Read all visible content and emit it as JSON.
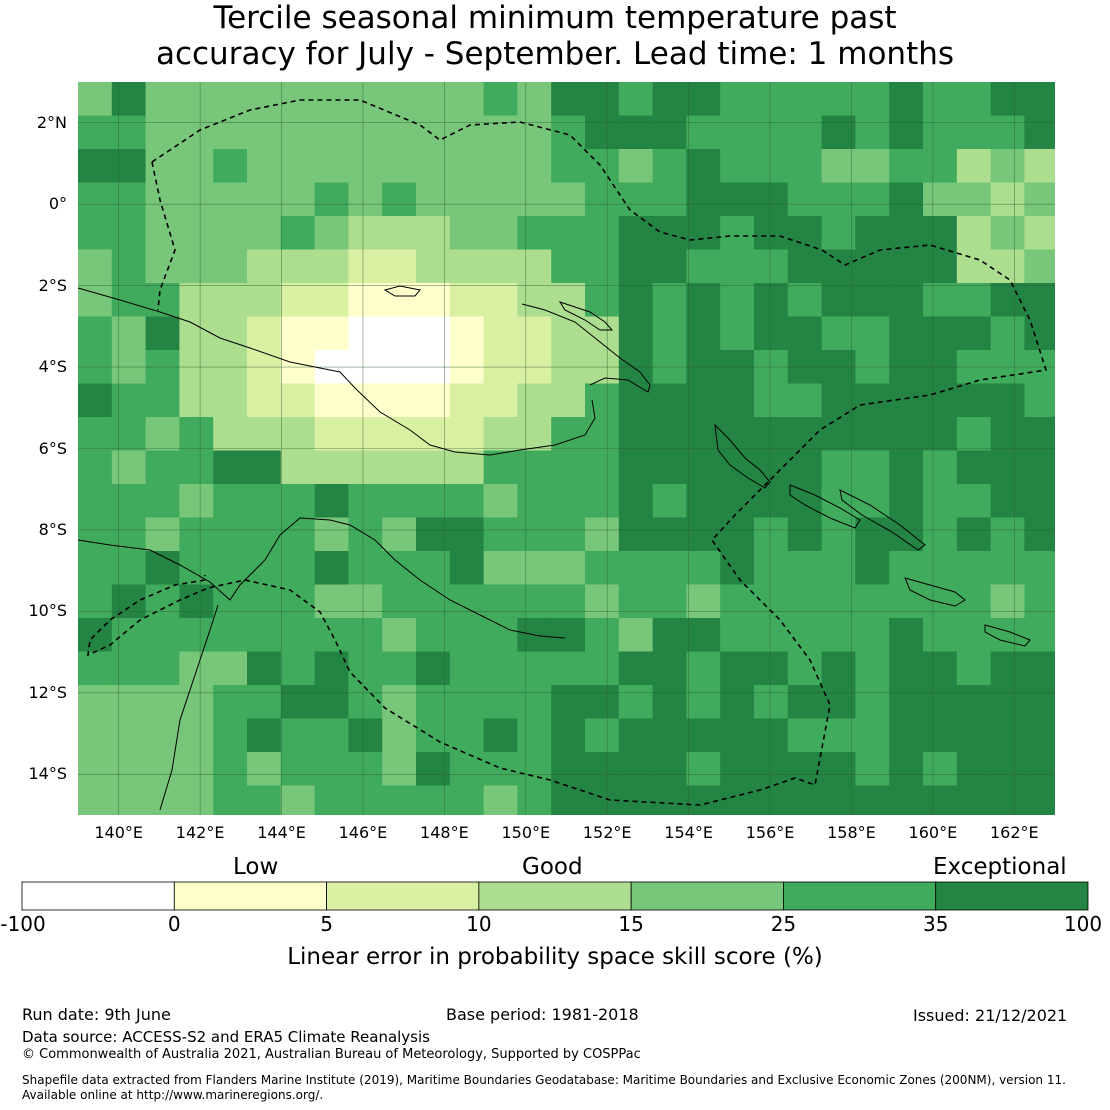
{
  "title": {
    "line1": "Tercile seasonal minimum temperature past",
    "line2": "accuracy for July - September. Lead time: 1 months"
  },
  "map": {
    "lon_range": [
      139,
      163
    ],
    "lat_range": [
      -15,
      3
    ],
    "lat_labels": [
      "2°N",
      "0°",
      "2°S",
      "4°S",
      "6°S",
      "8°S",
      "10°S",
      "12°S",
      "14°S"
    ],
    "lon_labels": [
      "140°E",
      "142°E",
      "144°E",
      "146°E",
      "148°E",
      "150°E",
      "152°E",
      "154°E",
      "156°E",
      "158°E",
      "160°E",
      "162°E"
    ]
  },
  "colorbar": {
    "categories": [
      "Low",
      "Good",
      "Exceptional"
    ],
    "ticks": [
      "-100",
      "0",
      "5",
      "10",
      "15",
      "25",
      "35",
      "100"
    ],
    "colors": [
      "#ffffff",
      "#ffffcc",
      "#d9f0a3",
      "#addd8e",
      "#78c679",
      "#41ab5d",
      "#238443"
    ],
    "label": "Linear error in probability space skill score (%)"
  },
  "footer": {
    "run_date": "Run date: 9th June",
    "base_period": "Base period: 1981-2018",
    "issued": "Issued: 21/12/2021",
    "data_source": "Data source: ACCESS-S2 and ERA5 Climate Reanalysis",
    "copyright": "© Commonwealth of Australia 2021, Australian Bureau of Meteorology, Supported by COSPPac",
    "shapefile_line1": "Shapefile data extracted from Flanders Marine Institute (2019), Maritime Boundaries Geodatabase: Maritime Boundaries and Exclusive Economic Zones (200NM), version 11.",
    "shapefile_line2": "Available online at http://www.marineregions.org/."
  }
}
